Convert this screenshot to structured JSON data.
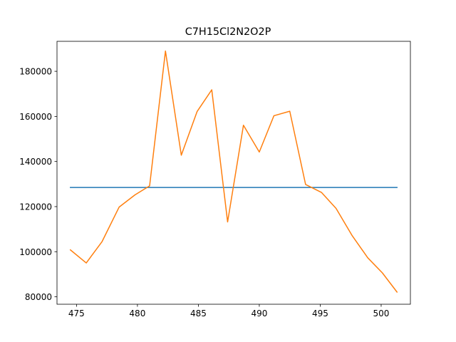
{
  "chart_data": {
    "type": "line",
    "title": "C7H15Cl2N2O2P",
    "xlabel": "",
    "ylabel": "",
    "xlim": [
      473.4,
      502.4
    ],
    "ylim": [
      76700,
      193300
    ],
    "xticks": [
      475,
      480,
      485,
      490,
      495,
      500
    ],
    "yticks": [
      80000,
      100000,
      120000,
      140000,
      160000,
      180000
    ],
    "grid": false,
    "legend": "none",
    "series": [
      {
        "color": "#1f77b4",
        "x": [
          474.5,
          501.3
        ],
        "y": [
          128500,
          128500
        ]
      },
      {
        "color": "#ff7f0e",
        "x": [
          474.5,
          475.8,
          477.1,
          478.5,
          479.8,
          481.0,
          482.3,
          483.6,
          484.9,
          486.1,
          487.4,
          488.7,
          490.0,
          491.2,
          492.5,
          493.8,
          495.1,
          496.3,
          497.6,
          498.9,
          500.1,
          501.3
        ],
        "y": [
          100800,
          95000,
          104500,
          119800,
          125200,
          129200,
          189000,
          142800,
          162200,
          171800,
          113200,
          156100,
          144200,
          160300,
          162300,
          129800,
          126300,
          119200,
          107300,
          97300,
          90600,
          82100
        ]
      }
    ]
  }
}
